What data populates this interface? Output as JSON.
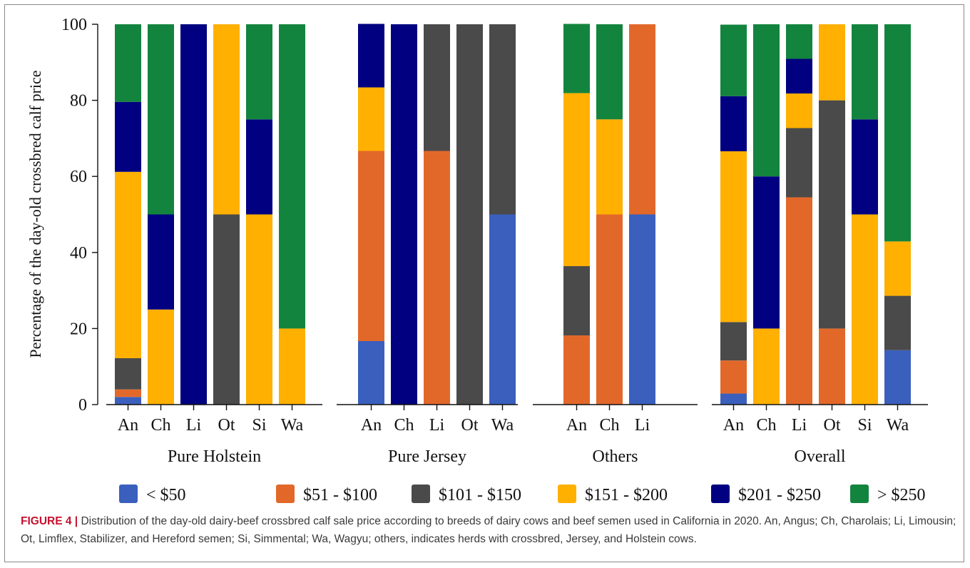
{
  "caption": {
    "label": "FIGURE 4 |",
    "text": " Distribution of the day-old dairy-beef crossbred calf sale price according to breeds of dairy cows and beef semen used in California in 2020. An, Angus; Ch, Charolais; Li, Limousin; Ot, Limflex, Stabilizer, and Hereford semen; Si, Simmental; Wa, Wagyu; others, indicates herds with crossbred, Jersey, and Holstein cows."
  },
  "chart_data": {
    "type": "bar",
    "stacked": true,
    "ylabel": "Percentage of the day-old crossbred calf price",
    "ylim": [
      0,
      100
    ],
    "yticks": [
      0,
      20,
      40,
      60,
      80,
      100
    ],
    "grid": false,
    "legend_position": "bottom",
    "series": [
      {
        "name": "< $50",
        "color": "#3a5fbd"
      },
      {
        "name": "$51 - $100",
        "color": "#e2682a"
      },
      {
        "name": "$101 - $150",
        "color": "#4a4a4a"
      },
      {
        "name": "$151 - $200",
        "color": "#ffb000"
      },
      {
        "name": "$201 - $250",
        "color": "#000080"
      },
      {
        "name": "> $250",
        "color": "#13843e"
      }
    ],
    "groups": [
      {
        "name": "Pure Holstein",
        "categories": [
          "An",
          "Ch",
          "Li",
          "Ot",
          "Si",
          "Wa"
        ],
        "values": [
          [
            2,
            2,
            8.2,
            49,
            18.4,
            20.4
          ],
          [
            0,
            0,
            0,
            25,
            25,
            50
          ],
          [
            0,
            0,
            0,
            0,
            100,
            0
          ],
          [
            0,
            0,
            50,
            50,
            0,
            0
          ],
          [
            0,
            0,
            0,
            50,
            25,
            25
          ],
          [
            0,
            0,
            0,
            20,
            0,
            80
          ]
        ]
      },
      {
        "name": "Pure Jersey",
        "categories": [
          "An",
          "Ch",
          "Li",
          "Ot",
          "Wa"
        ],
        "values": [
          [
            16.7,
            50,
            0,
            16.7,
            16.7,
            0
          ],
          [
            0,
            0,
            0,
            0,
            100,
            0
          ],
          [
            0,
            66.7,
            33.3,
            0,
            0,
            0
          ],
          [
            0,
            0,
            100,
            0,
            0,
            0
          ],
          [
            50,
            0,
            50,
            0,
            0,
            0
          ]
        ]
      },
      {
        "name": "Others",
        "categories": [
          "An",
          "Ch",
          "Li"
        ],
        "values": [
          [
            0,
            18.2,
            18.2,
            45.5,
            0,
            18.2
          ],
          [
            0,
            50,
            0,
            25,
            0,
            25
          ],
          [
            50,
            50,
            0,
            0,
            0,
            0
          ]
        ]
      },
      {
        "name": "Overall",
        "categories": [
          "An",
          "Ch",
          "Li",
          "Ot",
          "Si",
          "Wa"
        ],
        "values": [
          [
            2.9,
            8.7,
            10.1,
            44.9,
            14.5,
            18.8
          ],
          [
            0,
            0,
            0,
            20,
            40,
            40
          ],
          [
            0,
            54.5,
            18.2,
            9.1,
            9.1,
            9.1
          ],
          [
            0,
            20,
            60,
            20,
            0,
            0
          ],
          [
            0,
            0,
            0,
            50,
            25,
            25
          ],
          [
            14.3,
            0,
            14.3,
            14.3,
            0,
            57.1
          ]
        ]
      }
    ]
  }
}
